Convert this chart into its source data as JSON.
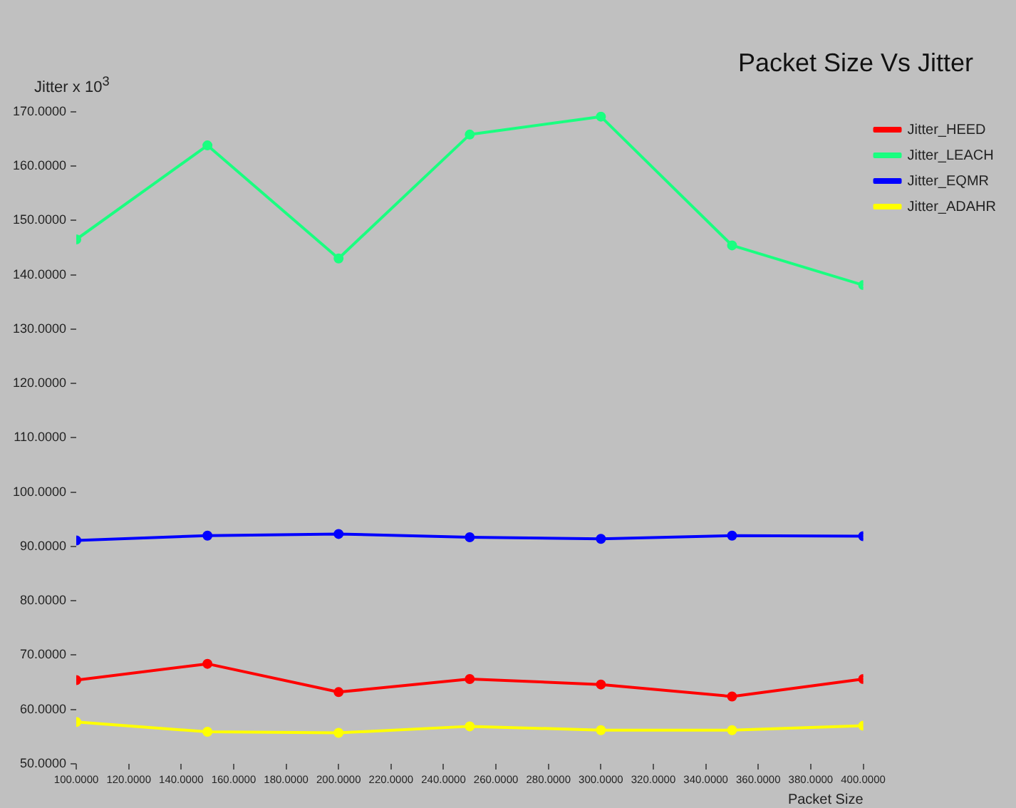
{
  "chart_data": {
    "type": "line",
    "title": "Packet Size Vs Jitter",
    "xlabel": "Packet Size",
    "ylabel": "Jitter x 10$^{3}$",
    "x": [
      100,
      150,
      200,
      250,
      300,
      350,
      400
    ],
    "series": [
      {
        "name": "Jitter_HEED",
        "color": "#ff0000",
        "values": [
          65.4,
          68.4,
          63.2,
          65.6,
          64.6,
          62.4,
          65.6
        ]
      },
      {
        "name": "Jitter_LEACH",
        "color": "#1aff80",
        "values": [
          146.5,
          163.8,
          143.0,
          165.8,
          169.1,
          145.4,
          138.1
        ]
      },
      {
        "name": "Jitter_EQMR",
        "color": "#0000ff",
        "values": [
          91.1,
          92.0,
          92.3,
          91.7,
          91.4,
          92.0,
          91.9
        ]
      },
      {
        "name": "Jitter_ADAHR",
        "color": "#ffff00",
        "values": [
          57.7,
          55.9,
          55.7,
          56.9,
          56.2,
          56.2,
          57.0
        ]
      }
    ],
    "xlim": [
      100,
      400
    ],
    "xticks": [
      {
        "value": 100,
        "label": "100.0000"
      },
      {
        "value": 120,
        "label": "120.0000"
      },
      {
        "value": 140,
        "label": "140.0000"
      },
      {
        "value": 160,
        "label": "160.0000"
      },
      {
        "value": 180,
        "label": "180.0000"
      },
      {
        "value": 200,
        "label": "200.0000"
      },
      {
        "value": 220,
        "label": "220.0000"
      },
      {
        "value": 240,
        "label": "240.0000"
      },
      {
        "value": 260,
        "label": "260.0000"
      },
      {
        "value": 280,
        "label": "280.0000"
      },
      {
        "value": 300,
        "label": "300.0000"
      },
      {
        "value": 320,
        "label": "320.0000"
      },
      {
        "value": 340,
        "label": "340.0000"
      },
      {
        "value": 360,
        "label": "360.0000"
      },
      {
        "value": 380,
        "label": "380.0000"
      },
      {
        "value": 400,
        "label": "400.0000"
      }
    ],
    "ylim": [
      50,
      170
    ],
    "yticks": [
      {
        "value": 50,
        "label": "50.0000"
      },
      {
        "value": 60,
        "label": "60.0000"
      },
      {
        "value": 70,
        "label": "70.0000"
      },
      {
        "value": 80,
        "label": "80.0000"
      },
      {
        "value": 90,
        "label": "90.0000"
      },
      {
        "value": 100,
        "label": "100.0000"
      },
      {
        "value": 110,
        "label": "110.0000"
      },
      {
        "value": 120,
        "label": "120.0000"
      },
      {
        "value": 130,
        "label": "130.0000"
      },
      {
        "value": 140,
        "label": "140.0000"
      },
      {
        "value": 150,
        "label": "150.0000"
      },
      {
        "value": 160,
        "label": "160.0000"
      },
      {
        "value": 170,
        "label": "170.0000"
      }
    ],
    "legend": "top right",
    "marker": "circle",
    "line_style": "solid",
    "grid": false
  }
}
